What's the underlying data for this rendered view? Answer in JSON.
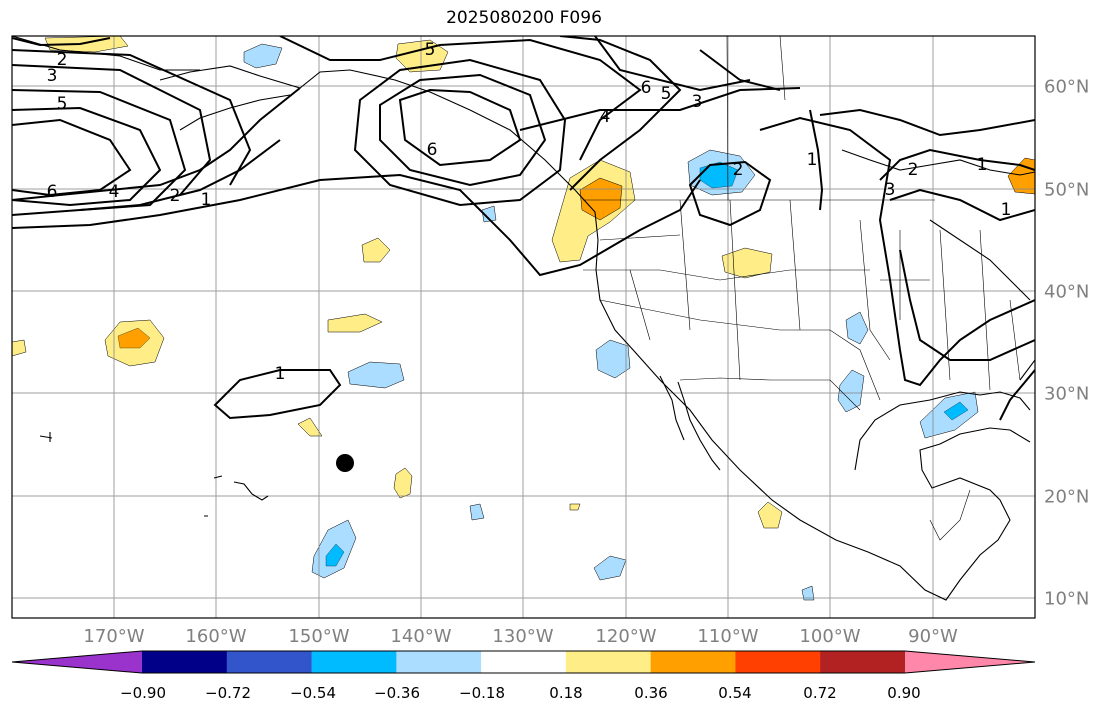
{
  "title": "2025080200 F096",
  "lon_labels": [
    "170°W",
    "160°W",
    "150°W",
    "140°W",
    "130°W",
    "120°W",
    "110°W",
    "100°W",
    "90°W"
  ],
  "lat_labels": [
    "60°N",
    "50°N",
    "40°N",
    "30°N",
    "20°N",
    "10°N"
  ],
  "contour_labels": [
    "2",
    "3",
    "5",
    "6",
    "4",
    "2",
    "1",
    "1",
    "5",
    "6",
    "6",
    "5",
    "4",
    "3",
    "1",
    "2",
    "1",
    "2",
    "3",
    "1"
  ],
  "colorbar": {
    "tick_labels": [
      "−0.90",
      "−0.72",
      "−0.54",
      "−0.36",
      "−0.18",
      "0.18",
      "0.36",
      "0.54",
      "0.72",
      "0.90"
    ],
    "colors": [
      "#9933cc",
      "#000088",
      "#3355cc",
      "#00bbff",
      "#aaddff",
      "#ffffff",
      "#ffee88",
      "#ffa000",
      "#ff4000",
      "#b22222",
      "#ff88aa"
    ]
  },
  "map_data": {
    "extent_lon": [
      -180,
      -80
    ],
    "extent_lat": [
      8,
      65
    ],
    "lon_ticks": [
      -170,
      -160,
      -150,
      -140,
      -130,
      -120,
      -110,
      -100,
      -90
    ],
    "lat_ticks": [
      60,
      50,
      40,
      30,
      20,
      10
    ],
    "marker": {
      "lon": -147,
      "lat": 23
    }
  }
}
